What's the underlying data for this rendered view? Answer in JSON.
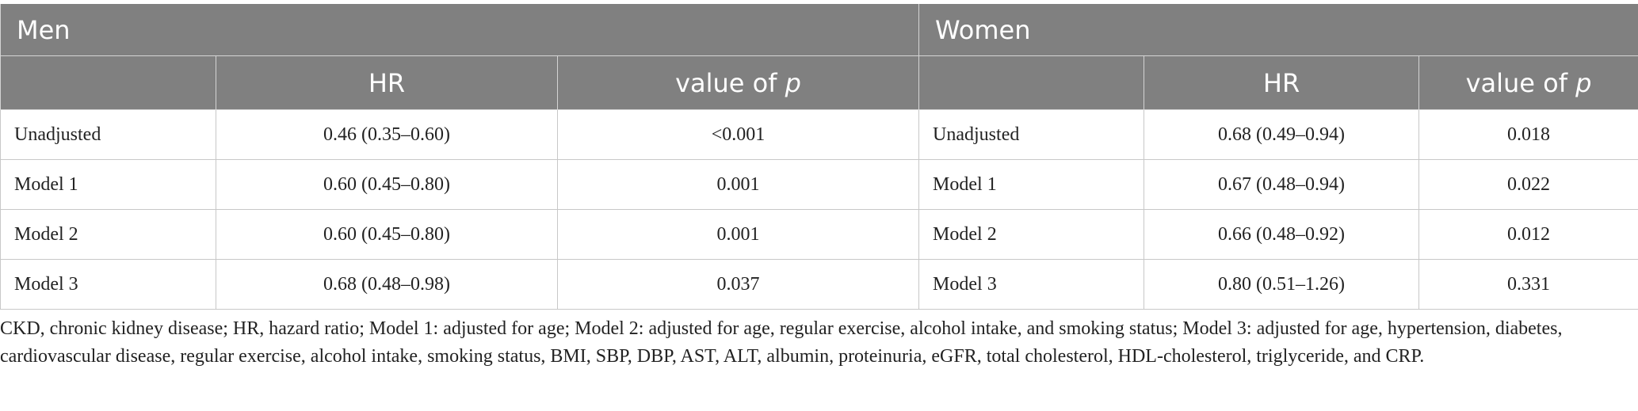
{
  "table": {
    "groups": [
      {
        "label": "Men"
      },
      {
        "label": "Women"
      }
    ],
    "col_headers": {
      "hr": "HR",
      "p_prefix": "value of ",
      "p_symbol": "p"
    },
    "rows": [
      {
        "men_label": "Unadjusted",
        "men_hr": "0.46 (0.35–0.60)",
        "men_p": "<0.001",
        "women_label": "Unadjusted",
        "women_hr": "0.68 (0.49–0.94)",
        "women_p": "0.018"
      },
      {
        "men_label": "Model 1",
        "men_hr": "0.60 (0.45–0.80)",
        "men_p": "0.001",
        "women_label": "Model 1",
        "women_hr": "0.67 (0.48–0.94)",
        "women_p": "0.022"
      },
      {
        "men_label": "Model 2",
        "men_hr": "0.60 (0.45–0.80)",
        "men_p": "0.001",
        "women_label": "Model 2",
        "women_hr": "0.66 (0.48–0.92)",
        "women_p": "0.012"
      },
      {
        "men_label": "Model 3",
        "men_hr": "0.68 (0.48–0.98)",
        "men_p": "0.037",
        "women_label": "Model 3",
        "women_hr": "0.80 (0.51–1.26)",
        "women_p": "0.331"
      }
    ]
  },
  "footnote": "CKD, chronic kidney disease; HR, hazard ratio; Model 1: adjusted for age; Model 2: adjusted for age, regular exercise, alcohol intake, and smoking status; Model 3: adjusted for age, hypertension, diabetes, cardiovascular disease, regular exercise, alcohol intake, smoking status, BMI, SBP, DBP, AST, ALT, albumin, proteinuria, eGFR, total cholesterol, HDL-cholesterol, triglyceride, and CRP.",
  "colors": {
    "header_bg": "#808080",
    "header_text": "#ffffff",
    "body_text": "#222222",
    "grid": "#c8c8c8"
  }
}
